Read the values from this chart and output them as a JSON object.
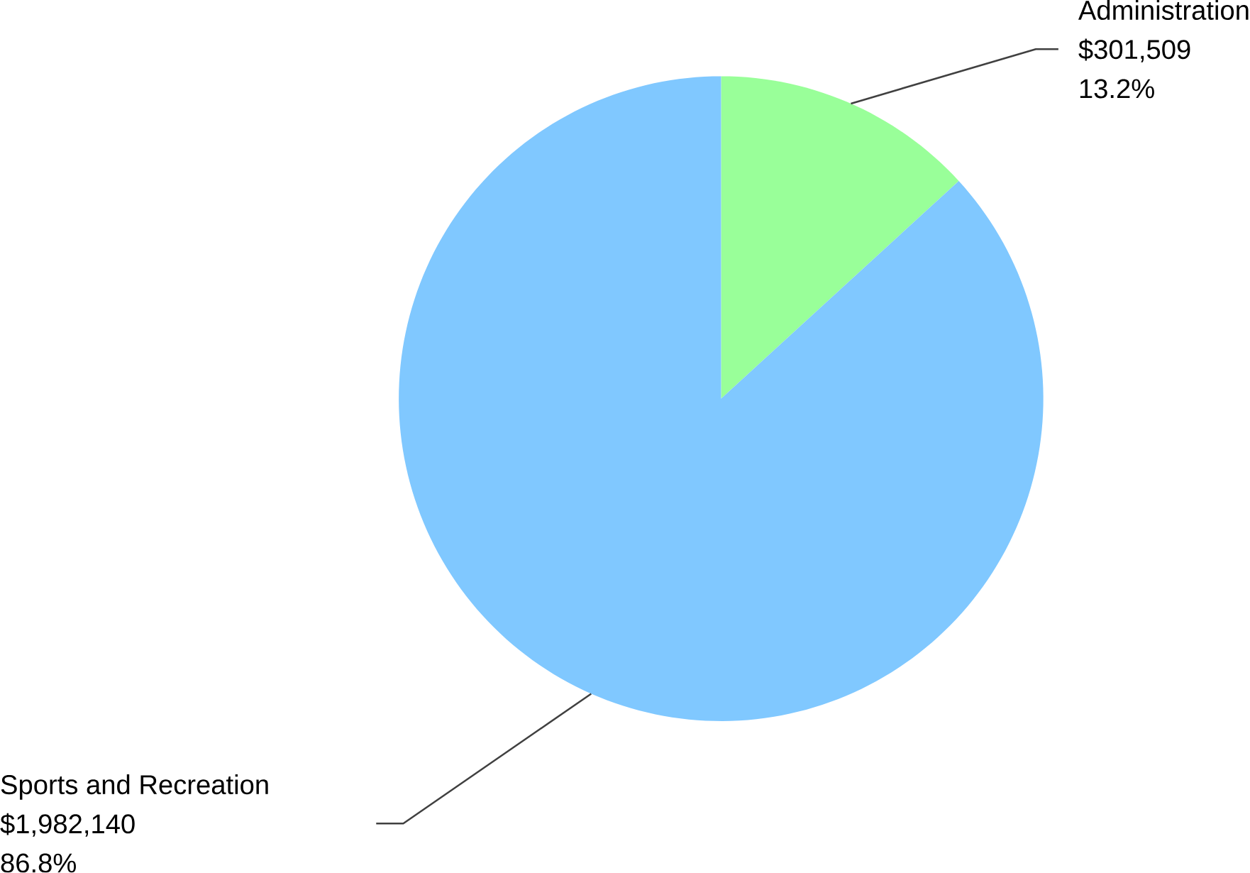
{
  "chart_data": {
    "type": "pie",
    "categories": [
      "Administration",
      "Sports and Recreation"
    ],
    "values": [
      301509,
      1982140
    ],
    "colors": [
      "#99ff99",
      "#80c8ff"
    ],
    "value_labels": [
      "$301,509",
      "$1,982,140"
    ],
    "annotations": [
      "13.2%",
      "86.8%"
    ]
  }
}
